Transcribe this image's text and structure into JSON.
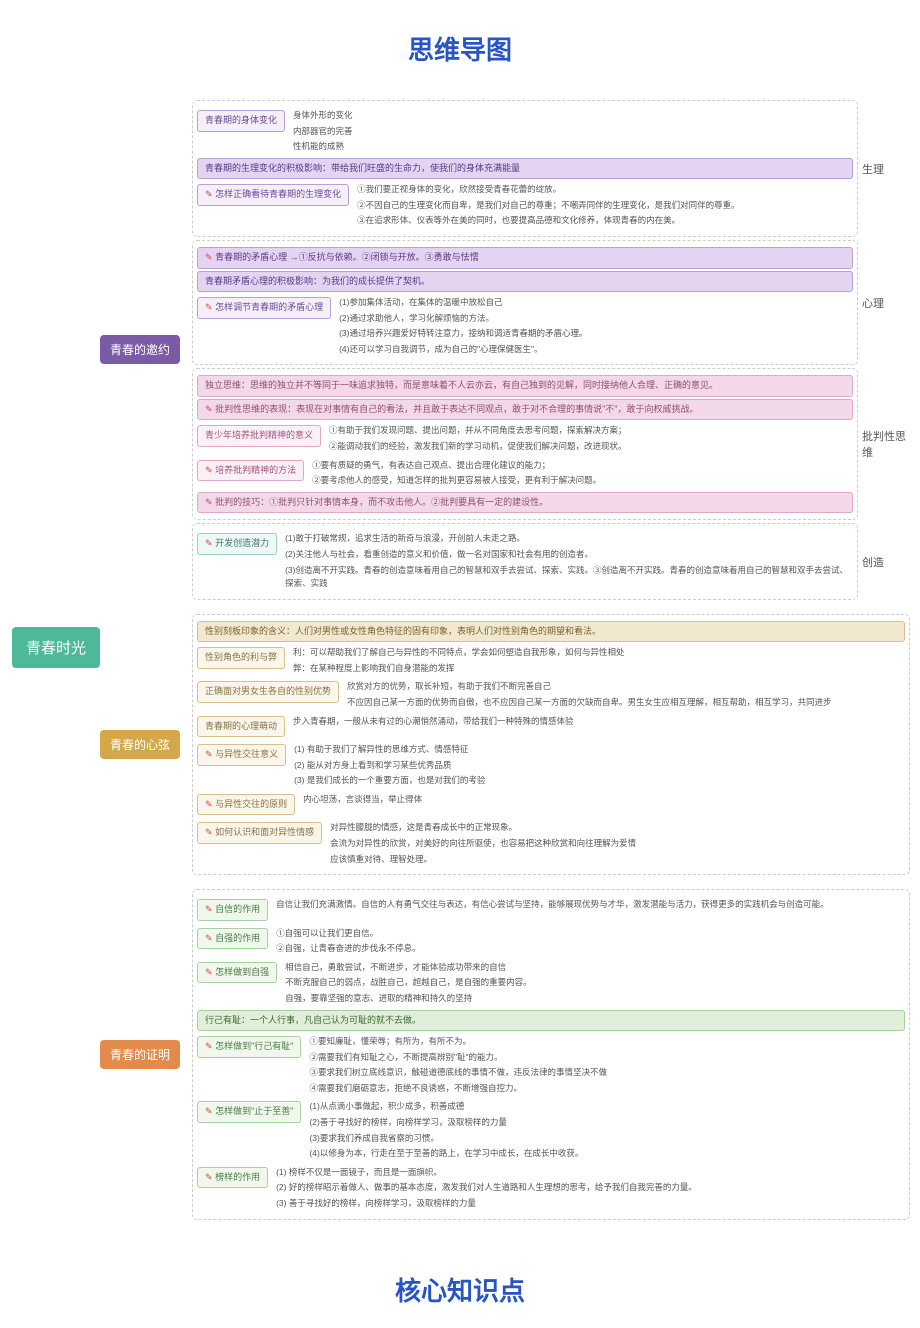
{
  "title_top": "思维导图",
  "title_bottom": "核心知识点",
  "root": "青春时光",
  "sections": [
    {
      "label": "青春的邀约",
      "color": "l1-purple",
      "groups": [
        {
          "side_label": "生理",
          "items": [
            {
              "type": "row",
              "head": {
                "cls": "c-purple",
                "text": "青春期的身体变化"
              },
              "leaves": [
                "身体外形的变化",
                "内部器官的完善",
                "性机能的成熟"
              ]
            },
            {
              "type": "full",
              "cls": "c-purple-hl",
              "text": "青春期的生理变化的积极影响：带给我们旺盛的生命力，使我们的身体充满能量"
            },
            {
              "type": "row",
              "head": {
                "cls": "c-purple pen",
                "text": "怎样正确看待青春期的生理变化"
              },
              "leaves": [
                "①我们要正视身体的变化，欣然接受青春花蕾的绽放。",
                "②不因自己的生理变化而自卑，是我们对自己的尊重；不嘲弄同伴的生理变化，是我们对同伴的尊重。",
                "③在追求形体、仪表等外在美的同时，也要提高品德和文化修养，体现青春的内在美。"
              ]
            }
          ]
        },
        {
          "side_label": "心理",
          "items": [
            {
              "type": "full",
              "cls": "c-purple-hl pen",
              "text": "青春期的矛盾心理 →①反抗与依赖。②闭锁与开放。③勇敢与怯懦"
            },
            {
              "type": "full",
              "cls": "c-purple-hl",
              "text": "青春期矛盾心理的积极影响：为我们的成长提供了契机。"
            },
            {
              "type": "row",
              "head": {
                "cls": "c-purple pen",
                "text": "怎样调节青春期的矛盾心理"
              },
              "leaves": [
                "(1)参加集体活动，在集体的温暖中放松自己",
                "(2)通过求助他人，学习化解烦恼的方法。",
                "(3)通过培养兴趣爱好特转注意力，接纳和调适青春期的矛盾心理。",
                "(4)还可以学习自我调节，成为自己的\"心理保健医生\"。"
              ]
            }
          ]
        },
        {
          "side_label": "批判性思维",
          "items": [
            {
              "type": "full",
              "cls": "c-pink-hl",
              "text": "独立思维：思维的独立并不等同于一味追求独特，而是意味着不人云亦云，有自己独到的见解，同时接纳他人合理、正确的意见。"
            },
            {
              "type": "full",
              "cls": "c-pink-hl pen",
              "text": "批判性思维的表现：表现在对事情有自己的看法，并且敢于表达不同观点，敢于对不合理的事情说\"不\"，敢于向权威挑战。"
            },
            {
              "type": "row",
              "head": {
                "cls": "c-pink",
                "text": "青少年培养批判精神的意义"
              },
              "leaves": [
                "①有助于我们发现问题、提出问题，并从不同角度去思考问题，探索解决方案；",
                "②能调动我们的经验，激发我们新的学习动机，促使我们解决问题，改进现状。"
              ]
            },
            {
              "type": "row",
              "head": {
                "cls": "c-pink pen",
                "text": "培养批判精神的方法"
              },
              "leaves": [
                "①要有质疑的勇气，有表达自己观点、提出合理化建议的能力；",
                "②要考虑他人的感受，知道怎样的批判更容易被人接受，更有利于解决问题。"
              ]
            },
            {
              "type": "full",
              "cls": "c-pink-hl pen",
              "text": "批判的技巧：①批判只针对事情本身，而不攻击他人。②批判要具有一定的建设性。"
            }
          ]
        },
        {
          "side_label": "创造",
          "items": [
            {
              "type": "row",
              "head": {
                "cls": "c-teal pen",
                "text": "开发创造潜力"
              },
              "leaves": [
                "(1)敢于打破常规，追求生活的新奇与浪漫，开创前人未走之路。",
                "(2)关注他人与社会，看重创造的意义和价值，做一名对国家和社会有用的创造者。",
                "(3)创造离不开实践。青春的创造意味着用自己的智慧和双手去尝试、探索、实践。③创造离不开实践。青春的创造意味着用自己的智慧和双手去尝试、探索、实践"
              ]
            }
          ]
        }
      ]
    },
    {
      "label": "青春的心弦",
      "color": "l1-yellow",
      "groups": [
        {
          "items": [
            {
              "type": "full",
              "cls": "c-yellow-hl",
              "text": "性别刻板印象的含义：人们对男性或女性角色特征的固有印象，表明人们对性别角色的期望和看法。"
            },
            {
              "type": "row",
              "head": {
                "cls": "c-yellow",
                "text": "性别角色的利与弊"
              },
              "leaves": [
                "利：可以帮助我们了解自己与异性的不同特点，学会如何塑造自我形象，如何与异性相处",
                "弊：在某种程度上影响我们自身潜能的发挥"
              ]
            },
            {
              "type": "row",
              "head": {
                "cls": "c-yellow",
                "text": "正确面对男女生各自的性别优势"
              },
              "leaves": [
                "欣赏对方的优势，取长补短，有助于我们不断完善自己",
                "不应因自己某一方面的优势而自傲，也不应因自己某一方面的欠缺而自卑。男生女生应相互理解，相互帮助，相互学习，共同进步"
              ]
            },
            {
              "type": "row",
              "head": {
                "cls": "c-yellow",
                "text": "青春期的心理萌动"
              },
              "leaves": [
                "步入青春期，一般从未有过的心潮悄然涌动，带给我们一种特殊的情感体验"
              ]
            },
            {
              "type": "row",
              "head": {
                "cls": "c-yellow pen",
                "text": "与异性交往意义"
              },
              "leaves": [
                "(1) 有助于我们了解异性的思维方式、情感特征",
                "(2) 能从对方身上看到和学习某些优秀品质",
                "(3) 是我们成长的一个重要方面，也是对我们的考验"
              ]
            },
            {
              "type": "row",
              "head": {
                "cls": "c-yellow pen",
                "text": "与异性交往的原则"
              },
              "leaves": [
                "内心坦荡，言谈得当，举止得体"
              ]
            },
            {
              "type": "row",
              "head": {
                "cls": "c-yellow pen",
                "text": "如何认识和面对异性情感"
              },
              "leaves": [
                "对异性朦胧的情感，这是青春成长中的正常现象。",
                "会流为对异性的欣赏，对美好的向往所驱使，也容易把这种欣赏和向往理解为爱情",
                "应该慎重对待、理智处理。"
              ]
            }
          ]
        }
      ]
    },
    {
      "label": "青春的证明",
      "color": "l1-orange",
      "groups": [
        {
          "items": [
            {
              "type": "row",
              "head": {
                "cls": "c-green pen",
                "text": "自信的作用"
              },
              "leaves": [
                "自信让我们充满激情。自信的人有勇气交往与表达，有信心尝试与坚持，能够展现优势与才华，激发潜能与活力，获得更多的实践机会与创造可能。"
              ]
            },
            {
              "type": "row",
              "head": {
                "cls": "c-green pen",
                "text": "自强的作用"
              },
              "leaves": [
                "①自强可以让我们更自信。",
                "②自强，让青春奋进的步伐永不停息。"
              ]
            },
            {
              "type": "row",
              "head": {
                "cls": "c-green pen",
                "text": "怎样做到自强"
              },
              "leaves": [
                "相信自己，勇敢尝试，不断进步，才能体验成功带来的自信",
                "不断克服自己的弱点，战胜自己，超越自己，是自强的重要内容。",
                "自强，要靠坚强的意志、进取的精神和持久的坚持"
              ]
            },
            {
              "type": "full",
              "cls": "c-green-hl",
              "text": "行己有耻：一个人行事，凡自己认为可耻的就不去做。"
            },
            {
              "type": "row",
              "head": {
                "cls": "c-green pen",
                "text": "怎样做到\"行己有耻\""
              },
              "leaves": [
                "①要知廉耻，懂荣辱；有所为，有所不为。",
                "②需要我们有知耻之心，不断提高辨别\"耻\"的能力。",
                "③要求我们树立底线意识，触碰道德底线的事情不做，违反法律的事情坚决不做",
                "④需要我们磨砺意志，拒绝不良诱惑，不断增强自控力。"
              ]
            },
            {
              "type": "row",
              "head": {
                "cls": "c-green pen",
                "text": "怎样做到\"止于至善\""
              },
              "leaves": [
                "(1)从点滴小事做起，积少成多，积善成德",
                "(2)善于寻找好的榜样，向榜样学习，汲取榜样的力量",
                "(3)要求我们养成自我省察的习惯。",
                "(4)以修身为本，行走在至于至善的路上，在学习中成长，在成长中收获。"
              ]
            },
            {
              "type": "row",
              "head": {
                "cls": "c-green pen",
                "text": "榜样的作用"
              },
              "leaves": [
                "(1) 榜样不仅是一面镜子，而且是一面旗帜。",
                "(2) 好的榜样昭示着做人、做事的基本态度，激发我们对人生道路和人生理想的思考，给予我们自我完善的力量。",
                "(3) 善于寻找好的榜样，向榜样学习，汲取榜样的力量"
              ]
            }
          ]
        }
      ]
    }
  ]
}
